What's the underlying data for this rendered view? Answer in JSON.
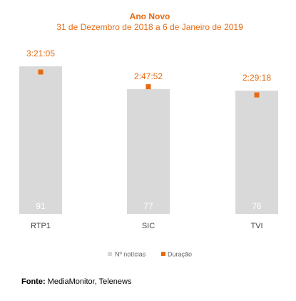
{
  "chart_data": {
    "type": "bar",
    "title": "Ano Novo",
    "subtitle": "31 de Dezembro de 2018 a 6 de Janeiro de 2019",
    "categories": [
      "RTP1",
      "SIC",
      "TVI"
    ],
    "series": [
      {
        "name": "Nº notícias",
        "values": [
          91,
          77,
          76
        ],
        "labels": [
          "91",
          "77",
          "76"
        ],
        "color": "#d9d9d9"
      },
      {
        "name": "Duração",
        "values": [
          201.08,
          167.87,
          149.3
        ],
        "labels": [
          "3:21:05",
          "2:47:52",
          "2:29:18"
        ],
        "color": "#e86a10"
      }
    ],
    "ylim": [
      0,
      100
    ],
    "legend_position": "bottom",
    "grid": false
  },
  "source": {
    "label": "Fonte:",
    "text": "MediaMonitor, Telenews"
  }
}
